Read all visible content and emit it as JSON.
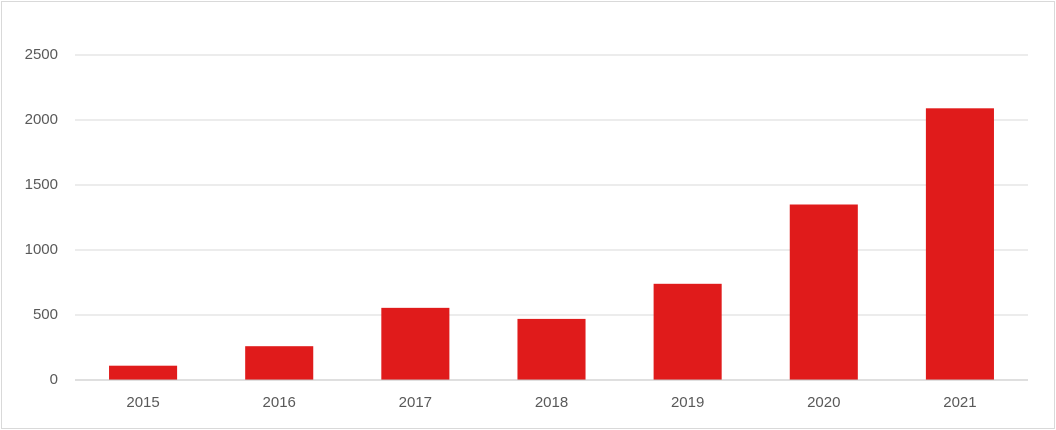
{
  "chart_data": {
    "type": "bar",
    "categories": [
      "2015",
      "2016",
      "2017",
      "2018",
      "2019",
      "2020",
      "2021"
    ],
    "values": [
      110,
      260,
      555,
      470,
      740,
      1350,
      2090
    ],
    "color": "#e01b1b",
    "ylim": [
      0,
      2500
    ],
    "yticks": [
      0,
      500,
      1000,
      1500,
      2000,
      2500
    ],
    "grid": true
  }
}
